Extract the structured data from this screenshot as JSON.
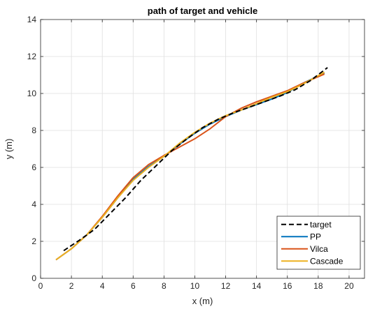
{
  "chart_data": {
    "type": "line",
    "title": "path of target and vehicle",
    "xlabel": "x (m)",
    "ylabel": "y (m)",
    "xlim": [
      0,
      21
    ],
    "ylim": [
      0,
      14
    ],
    "xticks": [
      0,
      2,
      4,
      6,
      8,
      10,
      12,
      14,
      16,
      18,
      20
    ],
    "yticks": [
      0,
      2,
      4,
      6,
      8,
      10,
      12,
      14
    ],
    "grid": true,
    "legend_position": "bottom-right",
    "series": [
      {
        "name": "target",
        "color": "#000000",
        "dashed": true,
        "x": [
          1.5,
          2.5,
          3.5,
          4.5,
          5.5,
          6.5,
          7.5,
          8.5,
          9.5,
          10.5,
          11.5,
          12.5,
          13.5,
          14.5,
          15.5,
          16.5,
          17.5,
          18.6
        ],
        "y": [
          1.5,
          2.05,
          2.65,
          3.5,
          4.35,
          5.3,
          6.1,
          6.9,
          7.55,
          8.15,
          8.6,
          8.95,
          9.25,
          9.55,
          9.85,
          10.2,
          10.7,
          11.4
        ]
      },
      {
        "name": "PP",
        "color": "#0072BD",
        "dashed": false,
        "x": [
          1.0,
          2.0,
          3.0,
          4.0,
          5.0,
          6.0,
          7.0,
          8.0,
          9.0,
          10.0,
          11.0,
          12.0,
          13.0,
          14.0,
          15.0,
          16.0,
          17.0,
          18.4
        ],
        "y": [
          1.0,
          1.6,
          2.35,
          3.3,
          4.35,
          5.35,
          6.05,
          6.6,
          7.25,
          7.85,
          8.35,
          8.75,
          9.1,
          9.4,
          9.7,
          10.05,
          10.55,
          11.1
        ]
      },
      {
        "name": "Vilca",
        "color": "#D95319",
        "dashed": false,
        "x": [
          1.0,
          2.0,
          3.0,
          4.0,
          5.0,
          6.0,
          7.0,
          8.0,
          9.0,
          10.0,
          11.0,
          12.0,
          13.0,
          14.0,
          15.0,
          16.0,
          17.0,
          18.4
        ],
        "y": [
          1.0,
          1.6,
          2.35,
          3.35,
          4.45,
          5.45,
          6.15,
          6.65,
          7.1,
          7.55,
          8.1,
          8.75,
          9.2,
          9.55,
          9.85,
          10.15,
          10.55,
          11.05
        ]
      },
      {
        "name": "Cascade",
        "color": "#EDB120",
        "dashed": false,
        "x": [
          1.0,
          2.0,
          3.0,
          4.0,
          5.0,
          6.0,
          7.0,
          8.0,
          9.0,
          10.0,
          11.0,
          12.0,
          13.0,
          14.0,
          15.0,
          16.0,
          17.0,
          18.4
        ],
        "y": [
          1.0,
          1.6,
          2.35,
          3.3,
          4.35,
          5.3,
          6.0,
          6.6,
          7.3,
          7.9,
          8.4,
          8.8,
          9.1,
          9.45,
          9.8,
          10.1,
          10.5,
          11.15
        ]
      }
    ]
  }
}
